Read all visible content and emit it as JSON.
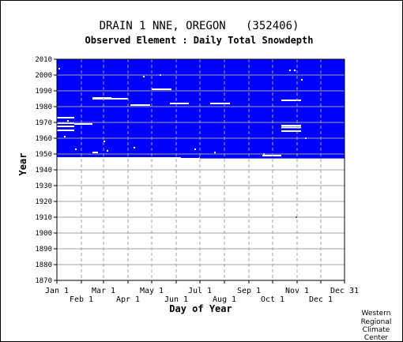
{
  "chart_data": {
    "type": "heatmap",
    "title": "DRAIN 1 NNE, OREGON   (352406)",
    "subtitle": "Observed Element : Daily Total Snowdepth",
    "xlabel": "Day of Year",
    "ylabel": "Year",
    "x_ticks_row1": [
      {
        "label": "Jan 1",
        "day": 1
      },
      {
        "label": "Mar 1",
        "day": 60
      },
      {
        "label": "May 1",
        "day": 121
      },
      {
        "label": "Jul 1",
        "day": 182
      },
      {
        "label": "Sep 1",
        "day": 244
      },
      {
        "label": "Nov 1",
        "day": 305
      },
      {
        "label": "Dec 31",
        "day": 365
      }
    ],
    "x_ticks_row2": [
      {
        "label": "Feb 1",
        "day": 32
      },
      {
        "label": "Apr 1",
        "day": 91
      },
      {
        "label": "Jun 1",
        "day": 152
      },
      {
        "label": "Aug 1",
        "day": 213
      },
      {
        "label": "Oct 1",
        "day": 274
      },
      {
        "label": "Dec 1",
        "day": 335
      }
    ],
    "xlim": [
      1,
      365
    ],
    "ylim": [
      1870,
      2010
    ],
    "y_ticks": [
      1870,
      1880,
      1890,
      1900,
      1910,
      1920,
      1930,
      1940,
      1950,
      1960,
      1970,
      1980,
      1990,
      2000,
      2010
    ],
    "grid": true,
    "data_color": "#0000ff",
    "data_block": {
      "day_start": 1,
      "day_end": 365,
      "year_start": 1948,
      "year_end": 2010
    },
    "data_block_edges": [
      {
        "day_start": 158,
        "day_end": 181,
        "year_start": 1947.5
      },
      {
        "day_start": 182,
        "day_end": 365,
        "year_start": 1947.2
      }
    ],
    "gaps": [
      {
        "day_start": 1,
        "day_end": 23,
        "year": 1973
      },
      {
        "day_start": 1,
        "day_end": 23,
        "year": 1969.5
      },
      {
        "day_start": 23,
        "day_end": 46,
        "year": 1969
      },
      {
        "day_start": 1,
        "day_end": 23,
        "year": 1967.5
      },
      {
        "day_start": 1,
        "day_end": 23,
        "year": 1965
      },
      {
        "day_start": 46,
        "day_end": 91,
        "year": 1985
      },
      {
        "day_start": 46,
        "day_end": 70,
        "year": 1985.5
      },
      {
        "day_start": 94,
        "day_end": 119,
        "year": 1981
      },
      {
        "day_start": 121,
        "day_end": 146,
        "year": 1991
      },
      {
        "day_start": 144,
        "day_end": 168,
        "year": 1982
      },
      {
        "day_start": 195,
        "day_end": 220,
        "year": 1982
      },
      {
        "day_start": 261,
        "day_end": 285,
        "year": 1949
      },
      {
        "day_start": 285,
        "day_end": 310,
        "year": 1984
      },
      {
        "day_start": 285,
        "day_end": 310,
        "year": 1968
      },
      {
        "day_start": 285,
        "day_end": 310,
        "year": 1966.8
      },
      {
        "day_start": 285,
        "day_end": 310,
        "year": 1964.5
      },
      {
        "day_start": 46,
        "day_end": 53,
        "year": 1951
      }
    ],
    "specks": [
      {
        "day": 3,
        "year": 2004
      },
      {
        "day": 110,
        "year": 1999
      },
      {
        "day": 131,
        "year": 2000
      },
      {
        "day": 295,
        "year": 2003
      },
      {
        "day": 301,
        "year": 2003
      },
      {
        "day": 310,
        "year": 1997
      },
      {
        "day": 14,
        "year": 1971
      },
      {
        "day": 60,
        "year": 1958
      },
      {
        "day": 64,
        "year": 1952
      },
      {
        "day": 24,
        "year": 1953
      },
      {
        "day": 98,
        "year": 1954
      },
      {
        "day": 10,
        "year": 1961
      },
      {
        "day": 175,
        "year": 1953
      },
      {
        "day": 200,
        "year": 1951
      },
      {
        "day": 303,
        "year": 1910
      },
      {
        "day": 262,
        "year": 1950
      },
      {
        "day": 315,
        "year": 1960
      }
    ]
  },
  "credit": [
    "Western",
    "Regional",
    "Climate",
    "Center"
  ]
}
